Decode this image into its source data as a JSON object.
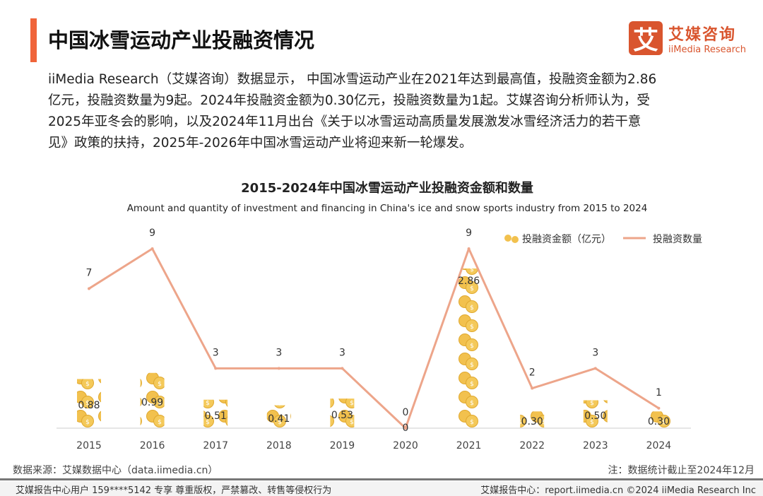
{
  "header": {
    "title": "中国冰雪运动产业投融资情况"
  },
  "logo": {
    "mark": "艾",
    "cn": "艾媒咨询",
    "en": "iiMedia Research"
  },
  "description": [
    "iiMedia Research（艾媒咨询）数据显示， 中国冰雪运动产业在2021年达到最高值，投融资金额为2.86",
    "亿元，投融资数量为9起。2024年投融资金额为0.30亿元，投融资数量为1起。艾媒咨询分析师认为，受",
    "2025年亚冬会的影响，以及2024年11月出台《关于以冰雪运动高质量发展激发冰雪经济活力的若干意",
    "见》政策的扶持，2025年-2026年中国冰雪运动产业将迎来新一轮爆发。"
  ],
  "chart_data": {
    "type": "bar+line",
    "title": "2015-2024年中国冰雪运动产业投融资金额和数量",
    "subtitle": "Amount and quantity of investment and financing in China's ice and snow sports industry from 2015 to 2024",
    "categories": [
      "2015",
      "2016",
      "2017",
      "2018",
      "2019",
      "2020",
      "2021",
      "2022",
      "2023",
      "2024"
    ],
    "series": [
      {
        "name": "投融资金额（亿元）",
        "type": "bar",
        "values": [
          0.88,
          0.99,
          0.51,
          0.41,
          0.53,
          0,
          2.86,
          0.3,
          0.5,
          0.3
        ],
        "labels": [
          "0.88",
          "0.99",
          "0.51",
          "0.41",
          "0.53",
          "0",
          "2.86",
          "0.30",
          "0.50",
          "0.30"
        ],
        "color": "#f2c14e"
      },
      {
        "name": "投融资数量",
        "type": "line",
        "values": [
          7,
          9,
          3,
          3,
          3,
          0,
          9,
          2,
          3,
          1
        ],
        "color": "#eda58a"
      }
    ],
    "ylim_bar": [
      0,
      3.2
    ],
    "ylim_line": [
      0,
      10
    ],
    "legend": "top-right",
    "grid": false
  },
  "footer": {
    "source": "数据来源：艾媒数据中心（data.iimedia.cn）",
    "note": "注：数据统计截止至2024年12月",
    "copyright_left": "艾媒报告中心用户 159****5142 专享 尊重版权，严禁篡改、转售等侵权行为",
    "copyright_right": "艾媒报告中心：report.iimedia.cn  ©2024  iiMedia Research  Inc"
  }
}
